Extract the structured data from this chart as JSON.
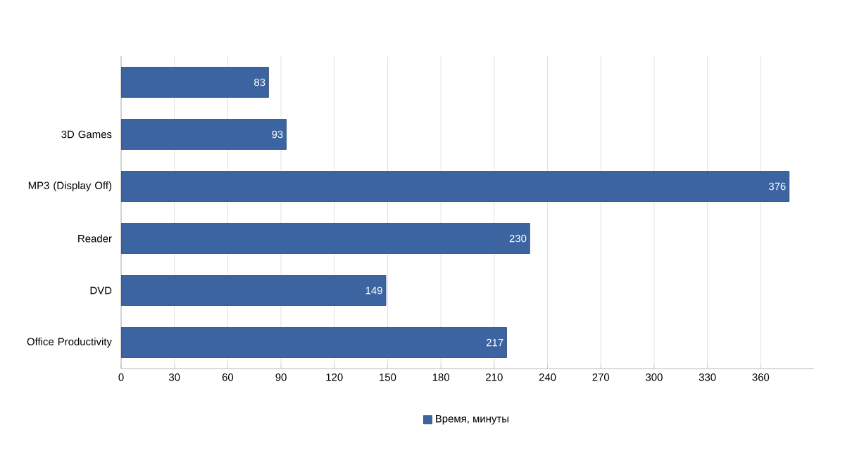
{
  "chart_data": {
    "type": "bar",
    "orientation": "horizontal",
    "categories": [
      null,
      "3D Games",
      "MP3 (Display Off)",
      "Reader",
      "DVD",
      "Office Productivity"
    ],
    "series": [
      {
        "name": "Время, минуты",
        "color": "#3b64a0",
        "values": [
          83,
          93,
          376,
          230,
          149,
          217
        ]
      }
    ],
    "xlim": [
      0,
      390
    ],
    "xticks": [
      0,
      30,
      60,
      90,
      120,
      150,
      180,
      210,
      240,
      270,
      300,
      330,
      360
    ],
    "grid": "x",
    "legend": "bottom",
    "data_labels": true
  }
}
